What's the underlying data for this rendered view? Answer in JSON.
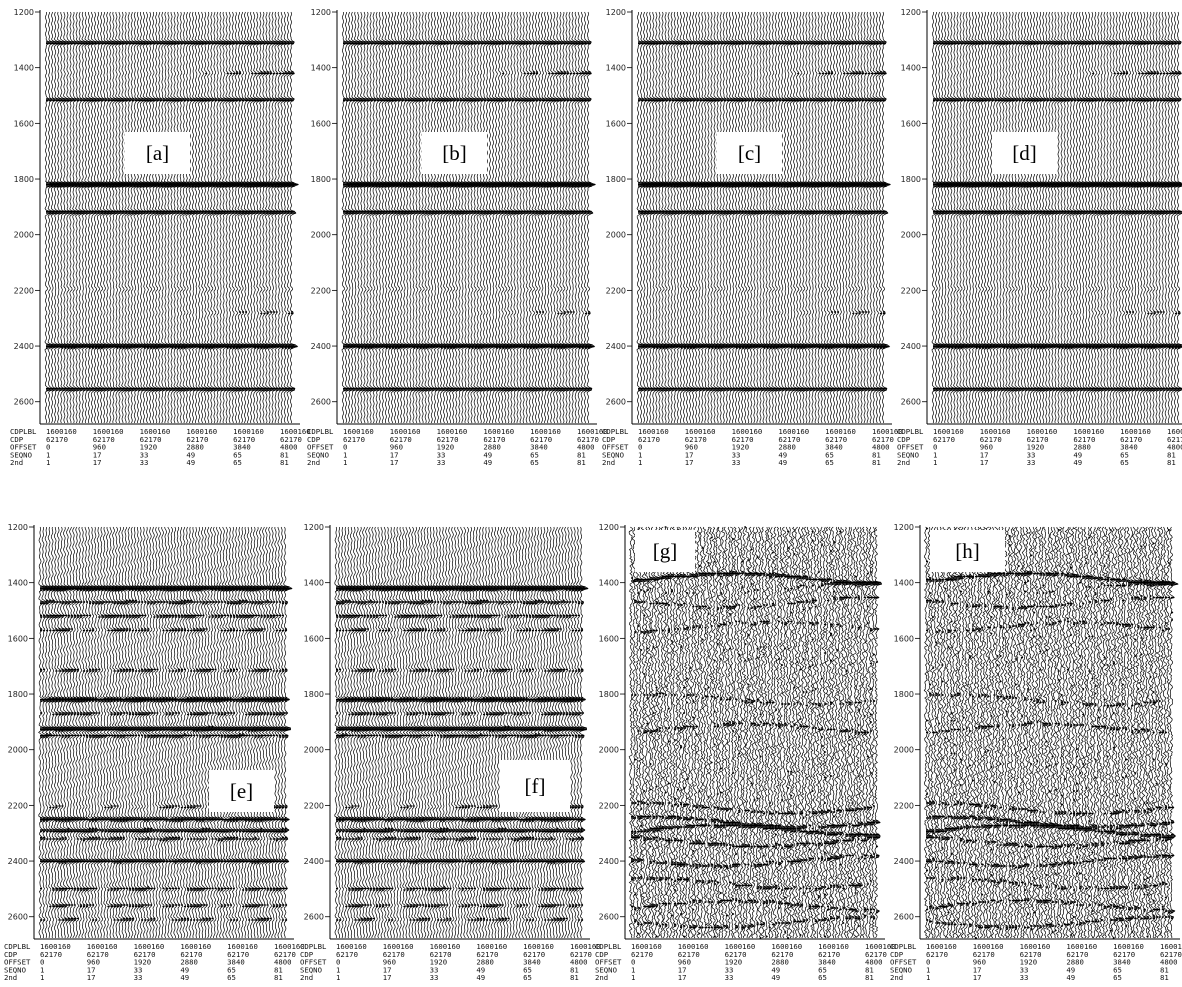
{
  "figure": {
    "time_ticks": [
      "1200",
      "1400",
      "1600",
      "1800",
      "2000",
      "2200",
      "2400",
      "2600"
    ],
    "header_rows": {
      "keys": [
        "CDPLBL",
        "CDP",
        "OFFSET",
        "SEQNO",
        "2nd"
      ],
      "values": [
        [
          "1600160",
          "1600160",
          "1600160",
          "1600160",
          "1600160",
          "1600160"
        ],
        [
          "62170",
          "62170",
          "62170",
          "62170",
          "62170",
          "62170"
        ],
        [
          "0",
          "960",
          "1920",
          "2880",
          "3840",
          "4800"
        ],
        [
          "1",
          "17",
          "33",
          "49",
          "65",
          "81"
        ],
        [
          "1",
          "17",
          "33",
          "49",
          "65",
          "81"
        ]
      ]
    },
    "trace_count": 81,
    "panels": [
      {
        "id": "a",
        "label": "[a]",
        "style": "clean"
      },
      {
        "id": "b",
        "label": "[b]",
        "style": "clean"
      },
      {
        "id": "c",
        "label": "[c]",
        "style": "clean"
      },
      {
        "id": "d",
        "label": "[d]",
        "style": "clean"
      },
      {
        "id": "e",
        "label": "[e]",
        "style": "mult"
      },
      {
        "id": "f",
        "label": "[f]",
        "style": "mult"
      },
      {
        "id": "g",
        "label": "[g]",
        "style": "noisy"
      },
      {
        "id": "h",
        "label": "[h]",
        "style": "noisy"
      }
    ],
    "colors": {
      "trace": "#000000",
      "background": "#ffffff"
    }
  }
}
